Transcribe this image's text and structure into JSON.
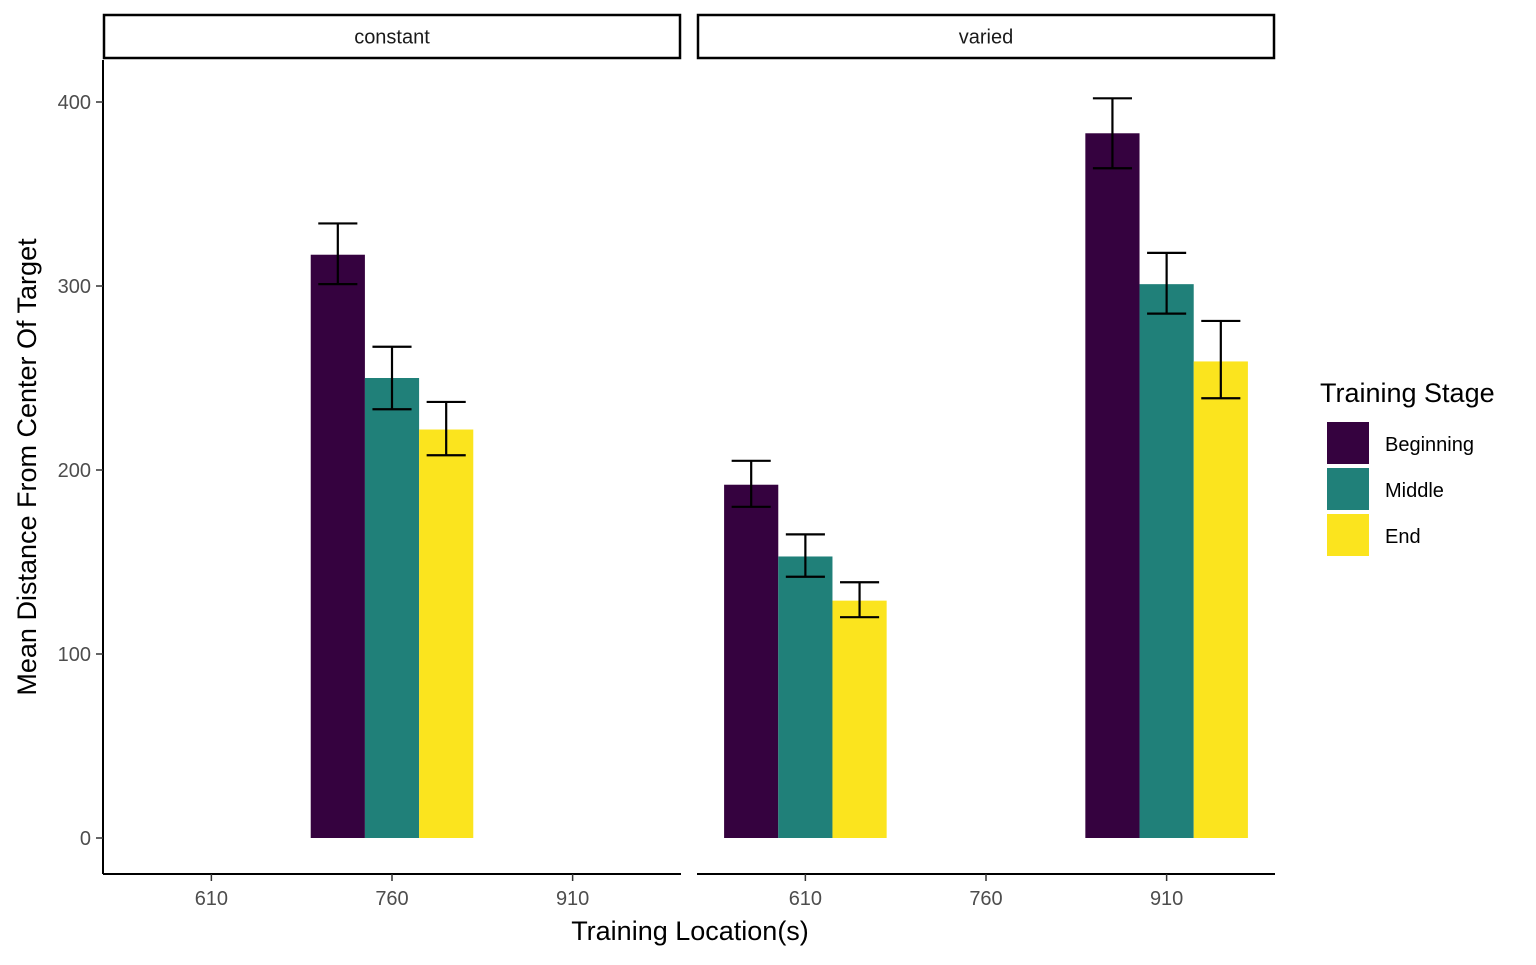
{
  "chart_data": {
    "type": "bar",
    "xlabel": "Training Location(s)",
    "ylabel": "Mean Distance From Center Of Target",
    "ylim": [
      -20,
      425
    ],
    "y_ticks": [
      0,
      100,
      200,
      300,
      400
    ],
    "x_categories": [
      "610",
      "760",
      "910"
    ],
    "legend": {
      "title": "Training Stage",
      "placement": "right",
      "entries": [
        {
          "name": "Beginning",
          "color": "#35023F"
        },
        {
          "name": "Middle",
          "color": "#208079"
        },
        {
          "name": "End",
          "color": "#FBE41E"
        }
      ]
    },
    "grid": false,
    "facets": [
      {
        "label": "constant",
        "groups": [
          {
            "x": "760",
            "bars": [
              {
                "stage": "Beginning",
                "value": 317,
                "err_low": 301,
                "err_high": 334
              },
              {
                "stage": "Middle",
                "value": 250,
                "err_low": 233,
                "err_high": 267
              },
              {
                "stage": "End",
                "value": 222,
                "err_low": 208,
                "err_high": 237
              }
            ]
          }
        ]
      },
      {
        "label": "varied",
        "groups": [
          {
            "x": "610",
            "bars": [
              {
                "stage": "Beginning",
                "value": 192,
                "err_low": 180,
                "err_high": 205
              },
              {
                "stage": "Middle",
                "value": 153,
                "err_low": 142,
                "err_high": 165
              },
              {
                "stage": "End",
                "value": 129,
                "err_low": 120,
                "err_high": 139
              }
            ]
          },
          {
            "x": "910",
            "bars": [
              {
                "stage": "Beginning",
                "value": 383,
                "err_low": 364,
                "err_high": 402
              },
              {
                "stage": "Middle",
                "value": 301,
                "err_low": 285,
                "err_high": 318
              },
              {
                "stage": "End",
                "value": 259,
                "err_low": 239,
                "err_high": 281
              }
            ]
          }
        ]
      }
    ]
  }
}
